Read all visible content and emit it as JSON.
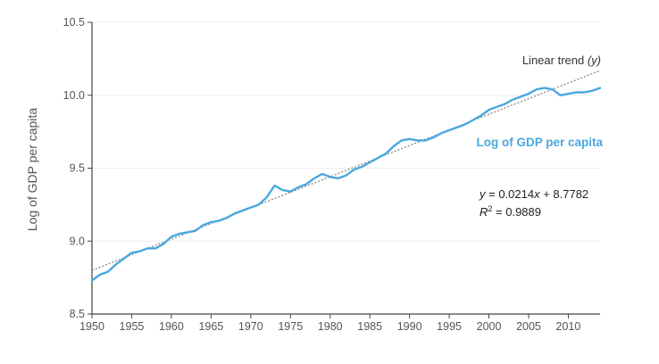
{
  "chart_data": {
    "type": "line",
    "title": "",
    "xlabel": "",
    "ylabel": "Log of GDP per capita",
    "xlim": [
      1950,
      2014
    ],
    "ylim": [
      8.5,
      10.5
    ],
    "xticks": [
      1950,
      1955,
      1960,
      1965,
      1970,
      1975,
      1980,
      1985,
      1990,
      1995,
      2000,
      2005,
      2010
    ],
    "xtick_labels": [
      "1950",
      "1955",
      "1960",
      "1965",
      "1970",
      "1975",
      "1980",
      "1985",
      "1990",
      "1995",
      "2000",
      "2005",
      "2010"
    ],
    "yticks": [
      8.5,
      9.0,
      9.5,
      10.0,
      10.5
    ],
    "ytick_labels": [
      "8.5",
      "9.0",
      "9.5",
      "10.0",
      "10.5"
    ],
    "grid": "horizontal",
    "series": [
      {
        "name": "Log of GDP per capita",
        "color": "#4aa8de",
        "x": [
          1950,
          1951,
          1952,
          1953,
          1954,
          1955,
          1956,
          1957,
          1958,
          1959,
          1960,
          1961,
          1962,
          1963,
          1964,
          1965,
          1966,
          1967,
          1968,
          1969,
          1970,
          1971,
          1972,
          1973,
          1974,
          1975,
          1976,
          1977,
          1978,
          1979,
          1980,
          1981,
          1982,
          1983,
          1984,
          1985,
          1986,
          1987,
          1988,
          1989,
          1990,
          1991,
          1992,
          1993,
          1994,
          1995,
          1996,
          1997,
          1998,
          1999,
          2000,
          2001,
          2002,
          2003,
          2004,
          2005,
          2006,
          2007,
          2008,
          2009,
          2010,
          2011,
          2012,
          2013,
          2014
        ],
        "y": [
          8.73,
          8.77,
          8.79,
          8.84,
          8.88,
          8.92,
          8.93,
          8.95,
          8.95,
          8.98,
          9.03,
          9.05,
          9.06,
          9.07,
          9.11,
          9.13,
          9.14,
          9.16,
          9.19,
          9.21,
          9.23,
          9.25,
          9.3,
          9.38,
          9.35,
          9.34,
          9.37,
          9.39,
          9.43,
          9.46,
          9.44,
          9.43,
          9.45,
          9.49,
          9.51,
          9.54,
          9.57,
          9.6,
          9.65,
          9.69,
          9.7,
          9.69,
          9.69,
          9.71,
          9.74,
          9.76,
          9.78,
          9.8,
          9.83,
          9.86,
          9.9,
          9.92,
          9.94,
          9.97,
          9.99,
          10.01,
          10.04,
          10.05,
          10.04,
          10.0,
          10.01,
          10.02,
          10.02,
          10.03,
          10.05
        ]
      }
    ],
    "trend": {
      "slope": 0.0214,
      "intercept": 8.7782,
      "color": "#888888"
    },
    "annotations": {
      "trend_label_main": "Linear trend ",
      "trend_label_var": "(y)",
      "series_label": "Log of GDP per capita",
      "eq_y": "y",
      "eq_rest_1": " = 0.0214",
      "eq_x": "x",
      "eq_rest_2": " + 8.7782",
      "r2_r": "R",
      "r2_sup": "2",
      "r2_rest": " = 0.9889"
    }
  }
}
